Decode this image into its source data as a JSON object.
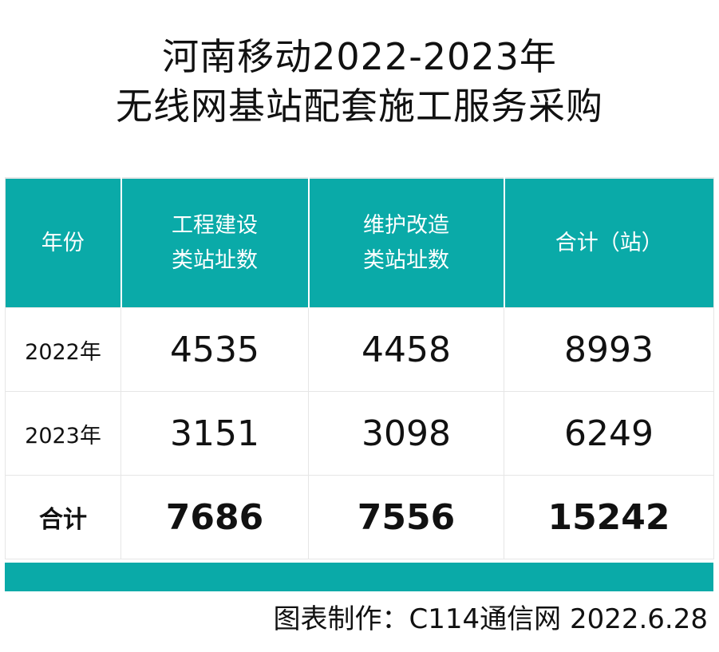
{
  "title_line1": "河南移动2022-2023年",
  "title_line2": "无线网基站配套施工服务采购",
  "chart_data": {
    "type": "table",
    "columns": [
      {
        "line1": "年份",
        "line2": ""
      },
      {
        "line1": "工程建设",
        "line2": "类站址数"
      },
      {
        "line1": "维护改造",
        "line2": "类站址数"
      },
      {
        "line1": "合计（站）",
        "line2": ""
      }
    ],
    "rows": [
      {
        "year": "2022年",
        "engineering": "4535",
        "maintenance": "4458",
        "total": "8993"
      },
      {
        "year": "2023年",
        "engineering": "3151",
        "maintenance": "3098",
        "total": "6249"
      }
    ],
    "total_row": {
      "label": "合计",
      "engineering": "7686",
      "maintenance": "7556",
      "total": "15242"
    }
  },
  "footer": "图表制作：C114通信网  2022.6.28",
  "colors": {
    "header_bg": "#0aaaa8",
    "header_text": "#ffffff"
  }
}
